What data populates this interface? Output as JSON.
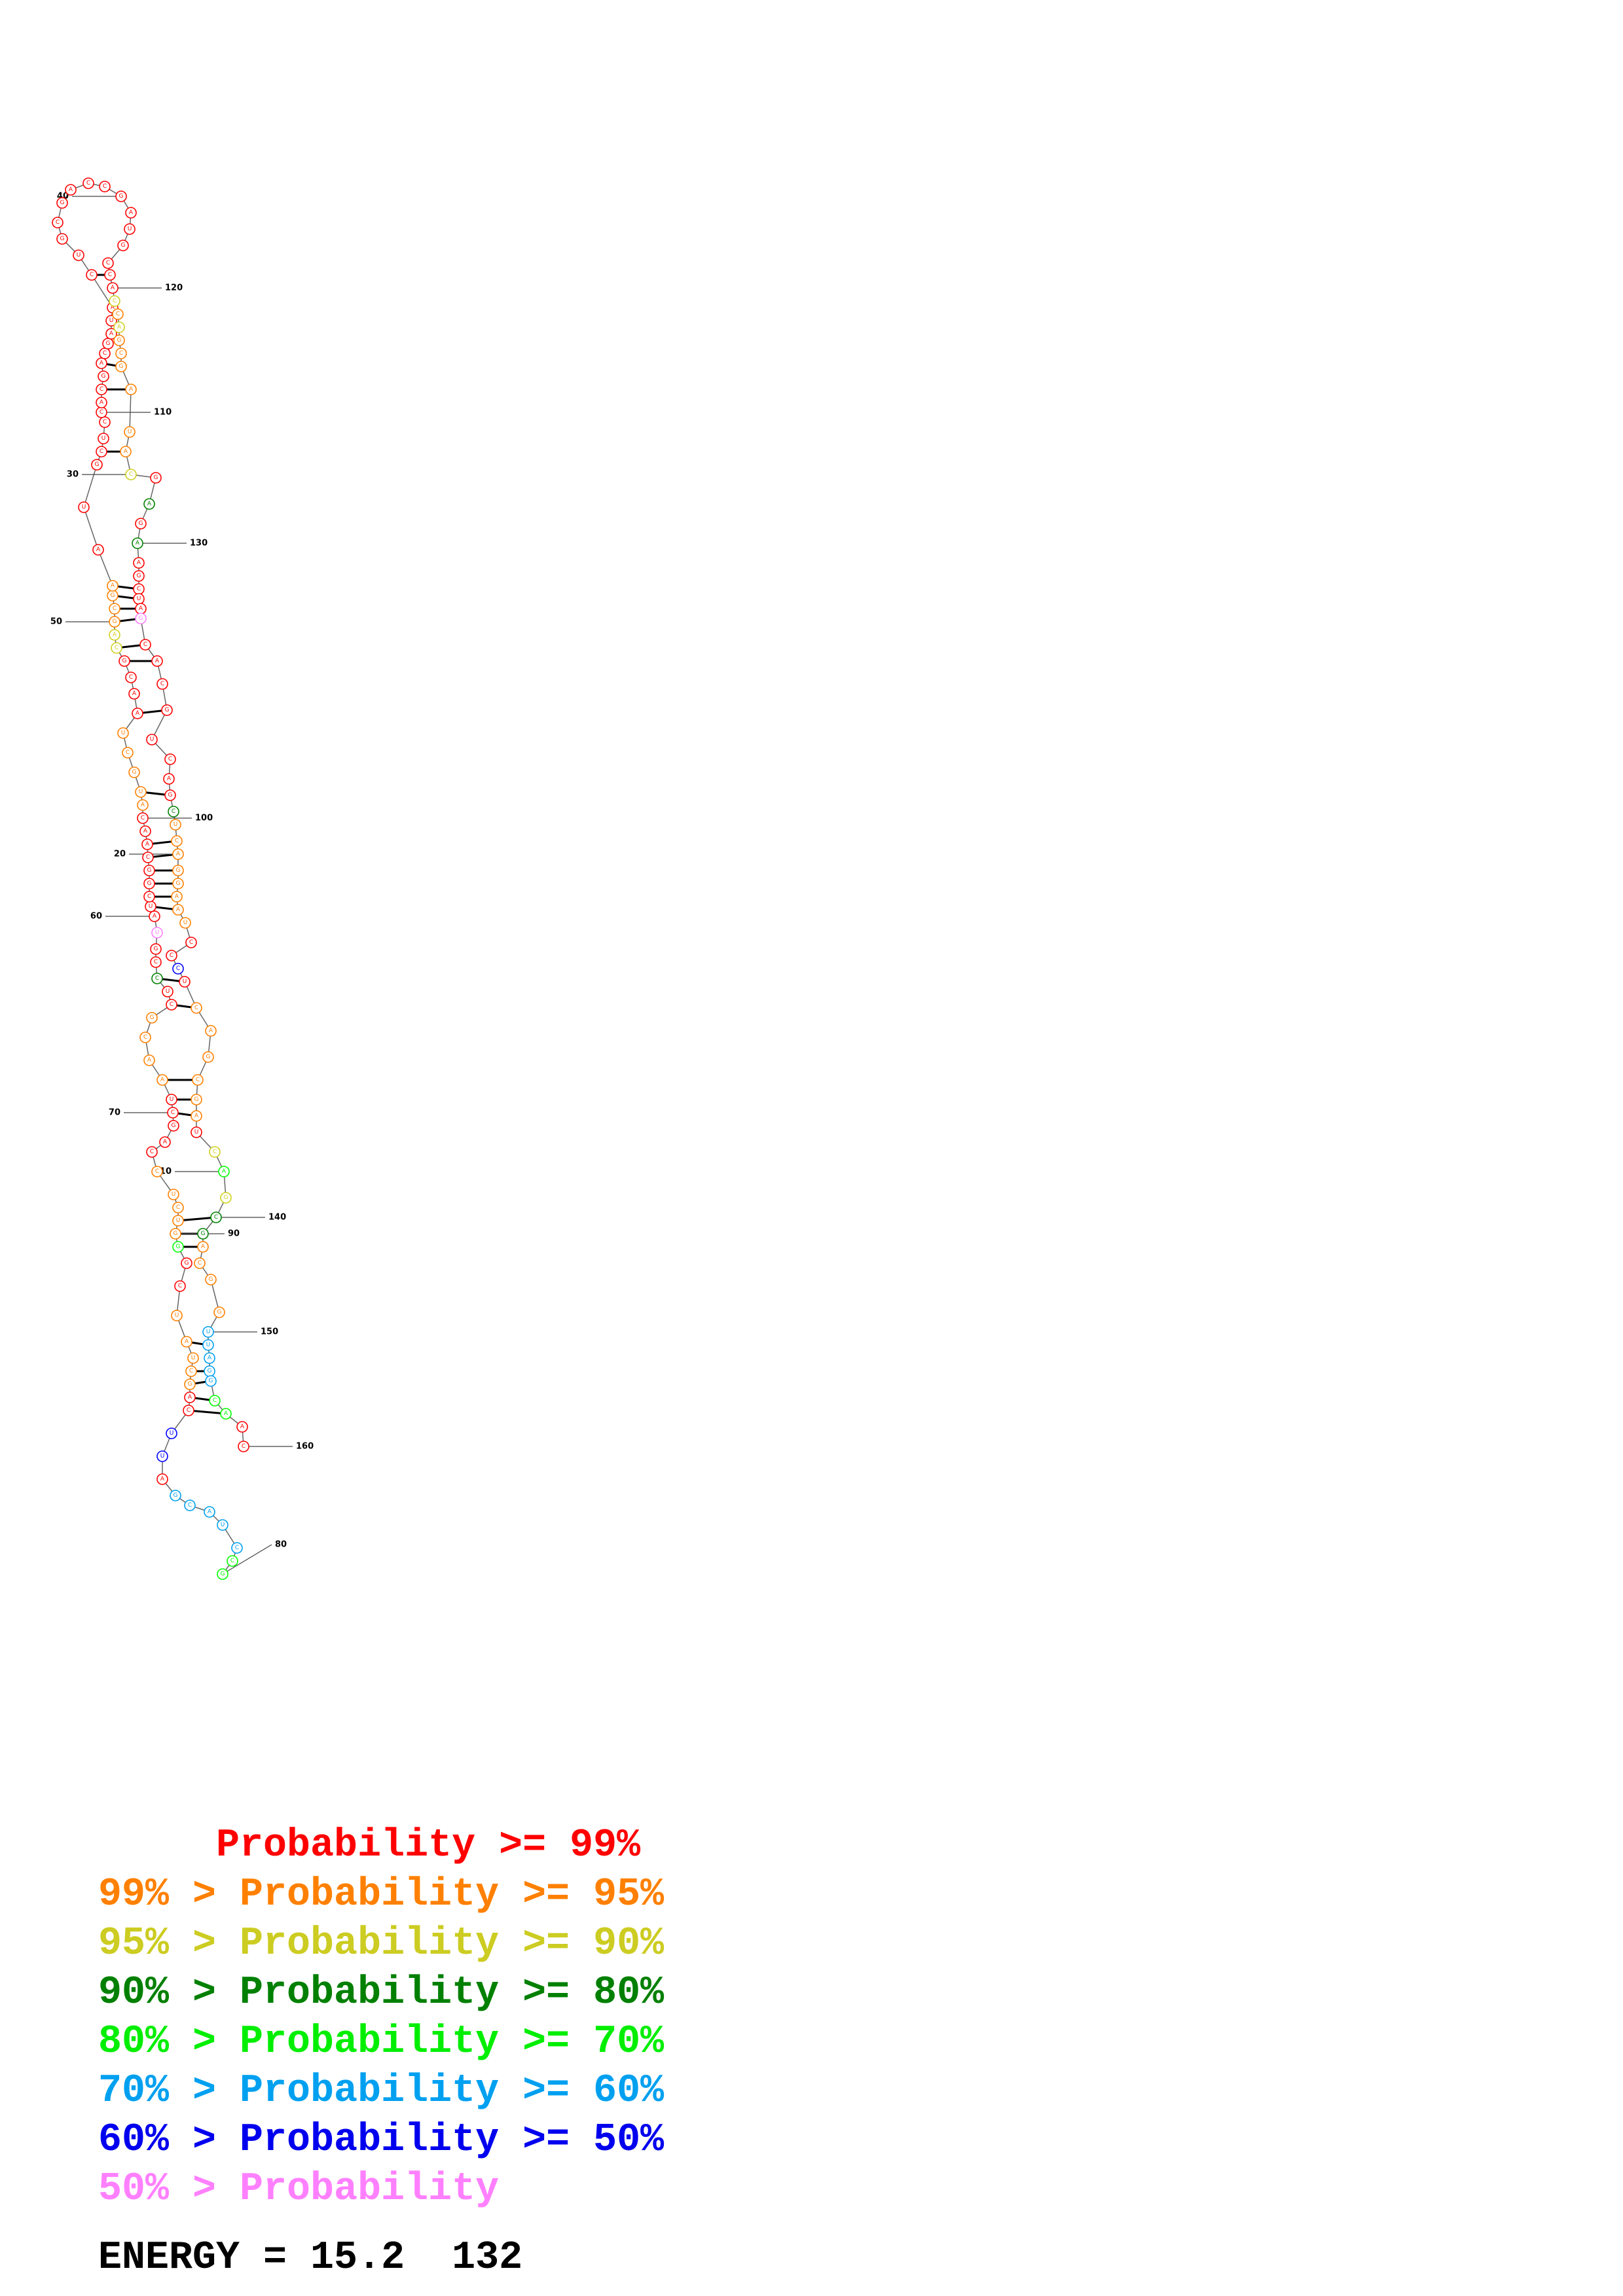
{
  "diagram": {
    "kind": "rna-secondary-structure",
    "position_labels": [
      "10",
      "20",
      "30",
      "40",
      "50",
      "60",
      "70",
      "80",
      "90",
      "100",
      "110",
      "120",
      "130",
      "140",
      "150",
      "160"
    ],
    "colors": {
      "p99": "#ff0000",
      "p95": "#ff8000",
      "p90": "#d0d020",
      "p80": "#008000",
      "p70": "#00ff00",
      "p60": "#00a0f0",
      "p50": "#0000ff",
      "p00": "#ff80ff"
    }
  },
  "legend": {
    "lines": [
      {
        "text": "     Probability >= 99%",
        "color": "#ff0000"
      },
      {
        "text": "99% > Probability >= 95%",
        "color": "#ff8000"
      },
      {
        "text": "95% > Probability >= 90%",
        "color": "#cccc22"
      },
      {
        "text": "90% > Probability >= 80%",
        "color": "#008000"
      },
      {
        "text": "80% > Probability >= 70%",
        "color": "#00ee00"
      },
      {
        "text": "70% > Probability >= 60%",
        "color": "#00a0f0"
      },
      {
        "text": "60% > Probability >= 50%",
        "color": "#0000ee"
      },
      {
        "text": "50% > Probability",
        "color": "#ff80ff"
      }
    ],
    "energy": "ENERGY = 15.2  132"
  }
}
